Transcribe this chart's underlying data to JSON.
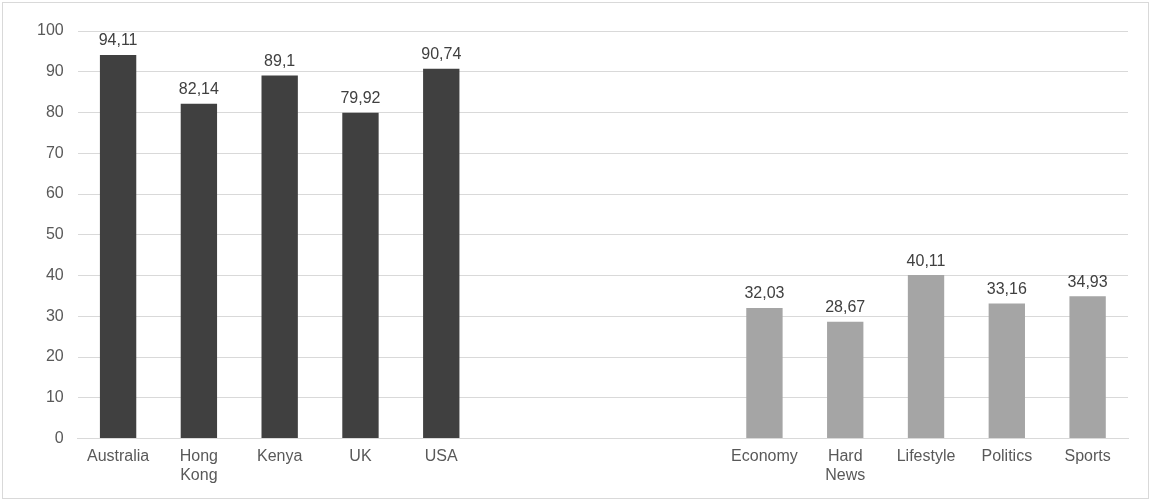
{
  "chart_data": {
    "type": "bar",
    "categories": [
      "Australia",
      "Hong Kong",
      "Kenya",
      "UK",
      "USA",
      null,
      null,
      null,
      "Economy",
      "Hard News",
      "Lifestyle",
      "Politics",
      "Sports"
    ],
    "values": [
      94.11,
      82.14,
      89.1,
      79.92,
      90.74,
      null,
      null,
      null,
      32.03,
      28.67,
      40.11,
      33.16,
      34.93
    ],
    "colors": [
      "#404040",
      "#404040",
      "#404040",
      "#404040",
      "#404040",
      "#404040",
      "#404040",
      "#404040",
      "#a5a5a5",
      "#a5a5a5",
      "#a5a5a5",
      "#a5a5a5",
      "#a5a5a5"
    ],
    "value_labels": [
      "94,11",
      "82,14",
      "89,1",
      "79,92",
      "90,74",
      null,
      null,
      null,
      "32,03",
      "28,67",
      "40,11",
      "33,16",
      "34,93"
    ],
    "ylim": [
      0,
      100
    ],
    "yticks": [
      0,
      10,
      20,
      30,
      40,
      50,
      60,
      70,
      80,
      90,
      100
    ],
    "grid": "y",
    "legend": false
  }
}
